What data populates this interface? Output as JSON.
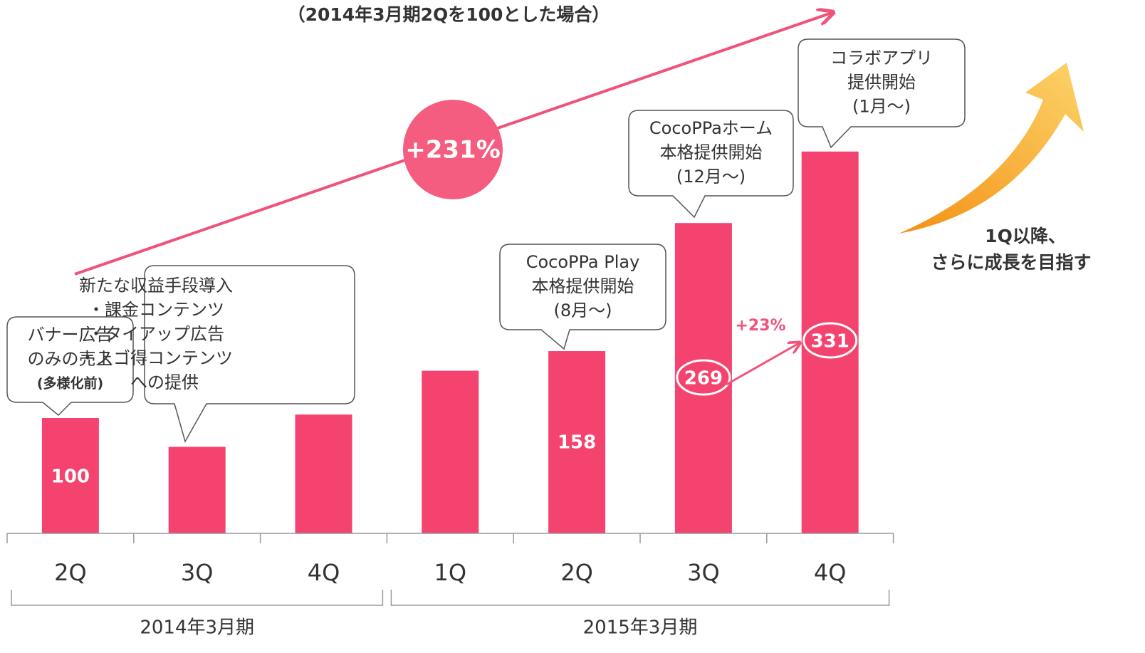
{
  "chart_data": {
    "type": "bar",
    "subtitle": "（2014年3月期2Qを100とした場合）",
    "categories": [
      "2Q",
      "3Q",
      "4Q",
      "1Q",
      "2Q",
      "3Q",
      "4Q"
    ],
    "values": [
      100,
      75,
      103,
      141,
      158,
      269,
      331
    ],
    "value_labels": [
      "100",
      null,
      null,
      null,
      "158",
      "269",
      "331"
    ],
    "color": "#f5436f",
    "groups": [
      {
        "label": "2014年3月期",
        "size": 3
      },
      {
        "label": "2015年3月期",
        "size": 4
      }
    ],
    "annotations": [
      {
        "lines": [
          "バナー広告",
          "のみの売上",
          "(多様化前)"
        ]
      },
      {
        "lines": [
          "新たな収益手段導入",
          "・課金コンテンツ",
          "・タイアップ広告",
          "・スゴ得コンテンツ",
          "　への提供"
        ]
      },
      {
        "lines": [
          "CocoPPa Play",
          "本格提供開始",
          "(8月～)"
        ]
      },
      {
        "lines": [
          "CocoPPaホーム",
          "本格提供開始",
          "(12月～)"
        ]
      },
      {
        "lines": [
          "コラボアプリ",
          "提供開始",
          "(1月～)"
        ]
      }
    ],
    "growth_total": "+231%",
    "growth_last": "+23%",
    "outlook": [
      "1Q以降、",
      "さらに成長を目指す"
    ]
  }
}
